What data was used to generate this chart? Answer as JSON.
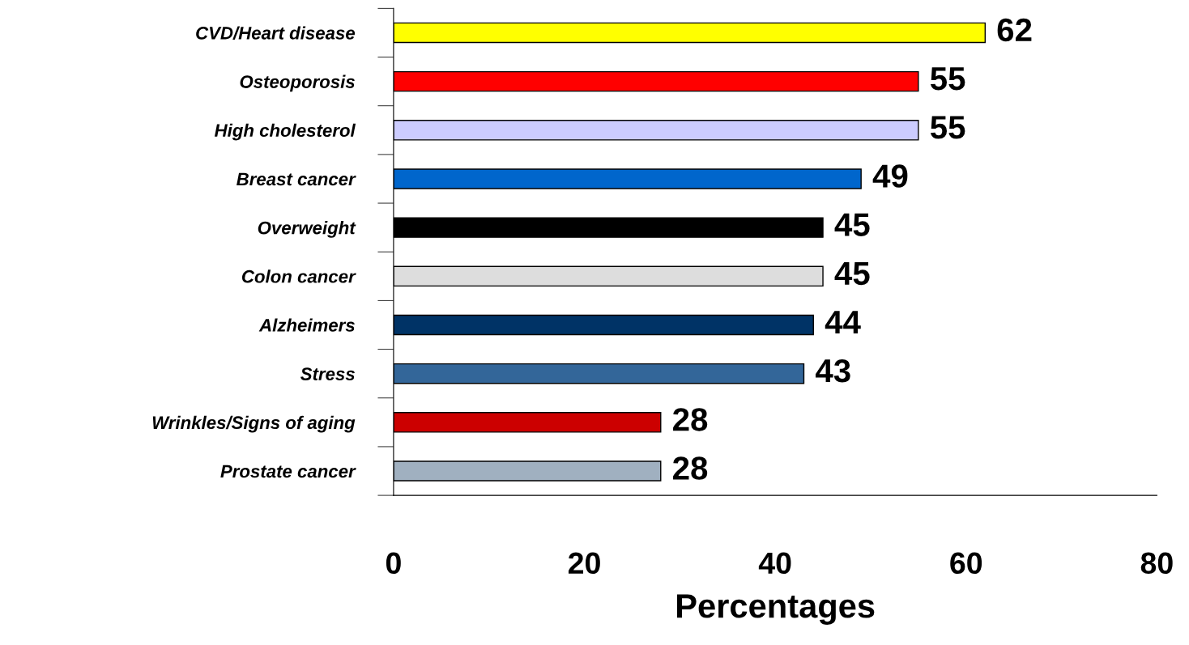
{
  "chart_data": {
    "type": "bar",
    "orientation": "horizontal",
    "xlabel": "Percentages",
    "categories": [
      "CVD/Heart disease",
      "Osteoporosis",
      "High cholesterol",
      "Breast cancer",
      "Overweight",
      "Colon cancer",
      "Alzheimers",
      "Stress",
      "Wrinkles/Signs of aging",
      "Prostate cancer"
    ],
    "values": [
      62,
      55,
      55,
      49,
      45,
      45,
      44,
      43,
      28,
      28
    ],
    "colors": [
      "#ffff00",
      "#ff0000",
      "#ccccff",
      "#0066cc",
      "#000000",
      "#dddddd",
      "#003366",
      "#336699",
      "#cc0000",
      "#a0b0c0"
    ],
    "xlim": [
      0,
      80
    ],
    "xticks": [
      0,
      20,
      40,
      60,
      80
    ],
    "data_labels": true,
    "grid": false,
    "legend": false
  }
}
